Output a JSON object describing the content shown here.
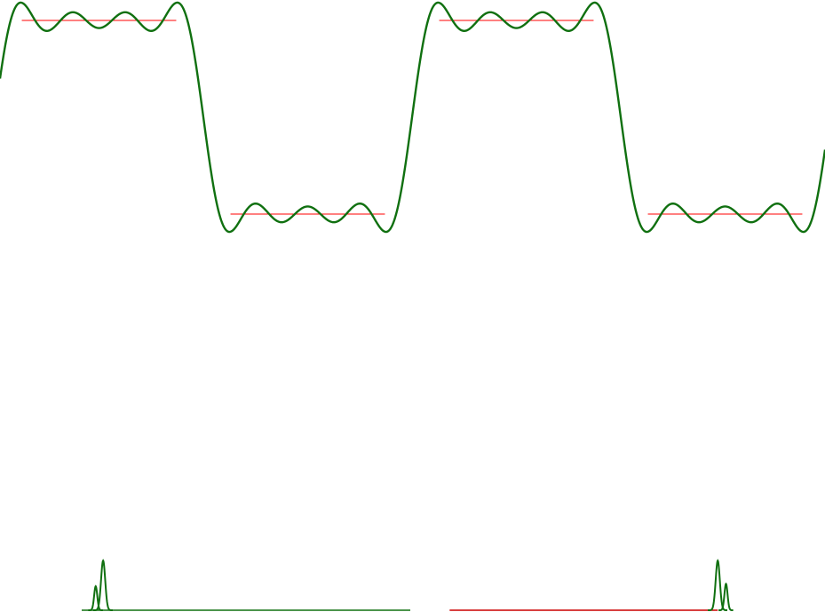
{
  "chart_data": [
    {
      "type": "line",
      "title": "",
      "xlabel": "",
      "ylabel": "",
      "grid": false,
      "legend": "none",
      "x_range": [
        0,
        2
      ],
      "y_range": [
        -1.25,
        1.25
      ],
      "periods": 2,
      "series": [
        {
          "kind": "square-wave",
          "color": "#ff0000",
          "amplitude": 1
        },
        {
          "kind": "fourier-partial-sum",
          "color": "#107010",
          "odd_harmonics": [
            1,
            3,
            5,
            7
          ],
          "coefficients": [
            1.2732,
            0.4244,
            0.2546,
            0.1819
          ]
        }
      ]
    },
    {
      "type": "line",
      "title": "",
      "xlabel": "",
      "ylabel": "",
      "grid": false,
      "legend": "none",
      "series": [
        {
          "kind": "spectrum-peaks",
          "color": "#107010",
          "peaks": [
            {
              "position": 0.125,
              "height": 0.62,
              "width": 0.004
            },
            {
              "position": 0.116,
              "height": 0.3,
              "width": 0.003
            },
            {
              "position": 0.87,
              "height": 0.62,
              "width": 0.004
            },
            {
              "position": 0.88,
              "height": 0.33,
              "width": 0.003
            }
          ]
        },
        {
          "kind": "baseline",
          "color": "#cc0000",
          "range": [
            0.545,
            0.87
          ]
        }
      ]
    }
  ]
}
